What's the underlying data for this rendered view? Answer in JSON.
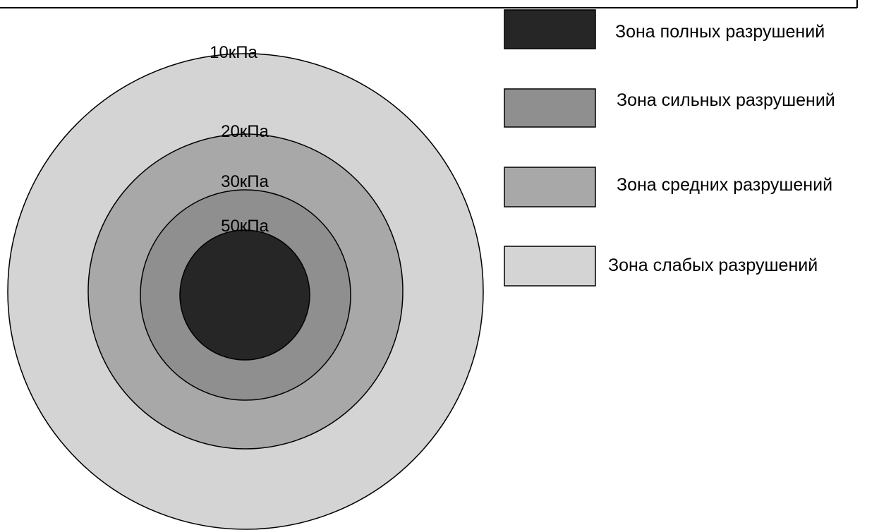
{
  "zones": [
    {
      "pressure_label": "10кПа",
      "color": "#d4d4d4"
    },
    {
      "pressure_label": "20кПа",
      "color": "#a8a8a8"
    },
    {
      "pressure_label": "30кПа",
      "color": "#8f8f8f"
    },
    {
      "pressure_label": "50кПа",
      "color": "#262626"
    }
  ],
  "legend": [
    {
      "label": "Зона полных разрушений",
      "color": "#262626"
    },
    {
      "label": "Зона сильных разрушений",
      "color": "#8f8f8f"
    },
    {
      "label": "Зона средних разрушений",
      "color": "#a8a8a8"
    },
    {
      "label": "Зона слабых разрушений",
      "color": "#d4d4d4"
    }
  ]
}
